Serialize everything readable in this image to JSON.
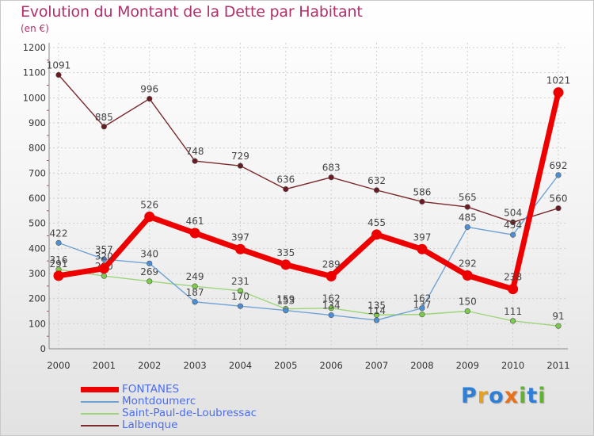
{
  "title": "Evolution du Montant de la Dette par Habitant",
  "subtitle": "(en €)",
  "logo_text": "Proxiti",
  "chart_data": {
    "type": "line",
    "x": [
      "2000",
      "2001",
      "2002",
      "2003",
      "2004",
      "2005",
      "2006",
      "2007",
      "2008",
      "2009",
      "2010",
      "2011"
    ],
    "ylim": [
      0,
      1200
    ],
    "yticks": [
      0,
      100,
      200,
      300,
      400,
      500,
      600,
      700,
      800,
      900,
      1000,
      1100,
      1200
    ],
    "grid": true,
    "legend_position": "bottom-left",
    "series": [
      {
        "name": "Lalbenque",
        "color": "#7a2a2e",
        "marker": "#6b1a22",
        "values": [
          1091,
          885,
          996,
          748,
          729,
          636,
          683,
          632,
          586,
          565,
          504,
          560
        ],
        "labels": [
          "1091",
          "885",
          "996",
          "748",
          "729",
          "636",
          "683",
          "632",
          "586",
          "565",
          "504",
          "560"
        ]
      },
      {
        "name": "Saint-Paul-de-Loubressac",
        "color": "#9ed57a",
        "marker": "#7ccb4a",
        "values": [
          316,
          290,
          269,
          249,
          231,
          159,
          162,
          135,
          137,
          150,
          111,
          91
        ],
        "labels": [
          "316",
          "290",
          "269",
          "249",
          "231",
          "159",
          "162",
          "135",
          "137",
          "150",
          "111",
          "91"
        ]
      },
      {
        "name": "Montdoumerc",
        "color": "#6fa3d4",
        "marker": "#4d8fd6",
        "values": [
          422,
          357,
          340,
          187,
          170,
          153,
          134,
          114,
          162,
          485,
          454,
          692
        ],
        "labels": [
          "422",
          "357",
          "340",
          "187",
          "170",
          "153",
          "134",
          "114",
          "162",
          "485",
          "454",
          "692"
        ]
      },
      {
        "name": "FONTANES",
        "color": "#ee0000",
        "marker": "#ee0000",
        "values": [
          291,
          320,
          526,
          461,
          397,
          335,
          289,
          455,
          397,
          292,
          238,
          1021
        ],
        "labels": [
          "291",
          "320",
          "526",
          "461",
          "397",
          "335",
          "289",
          "455",
          "397",
          "292",
          "238",
          "1021"
        ]
      }
    ]
  },
  "legend": [
    {
      "name": "FONTANES",
      "color": "#ee0000"
    },
    {
      "name": "Montdoumerc",
      "color": "#6fa3d4"
    },
    {
      "name": "Saint-Paul-de-Loubressac",
      "color": "#9ed57a"
    },
    {
      "name": "Lalbenque",
      "color": "#7a2a2e"
    }
  ]
}
